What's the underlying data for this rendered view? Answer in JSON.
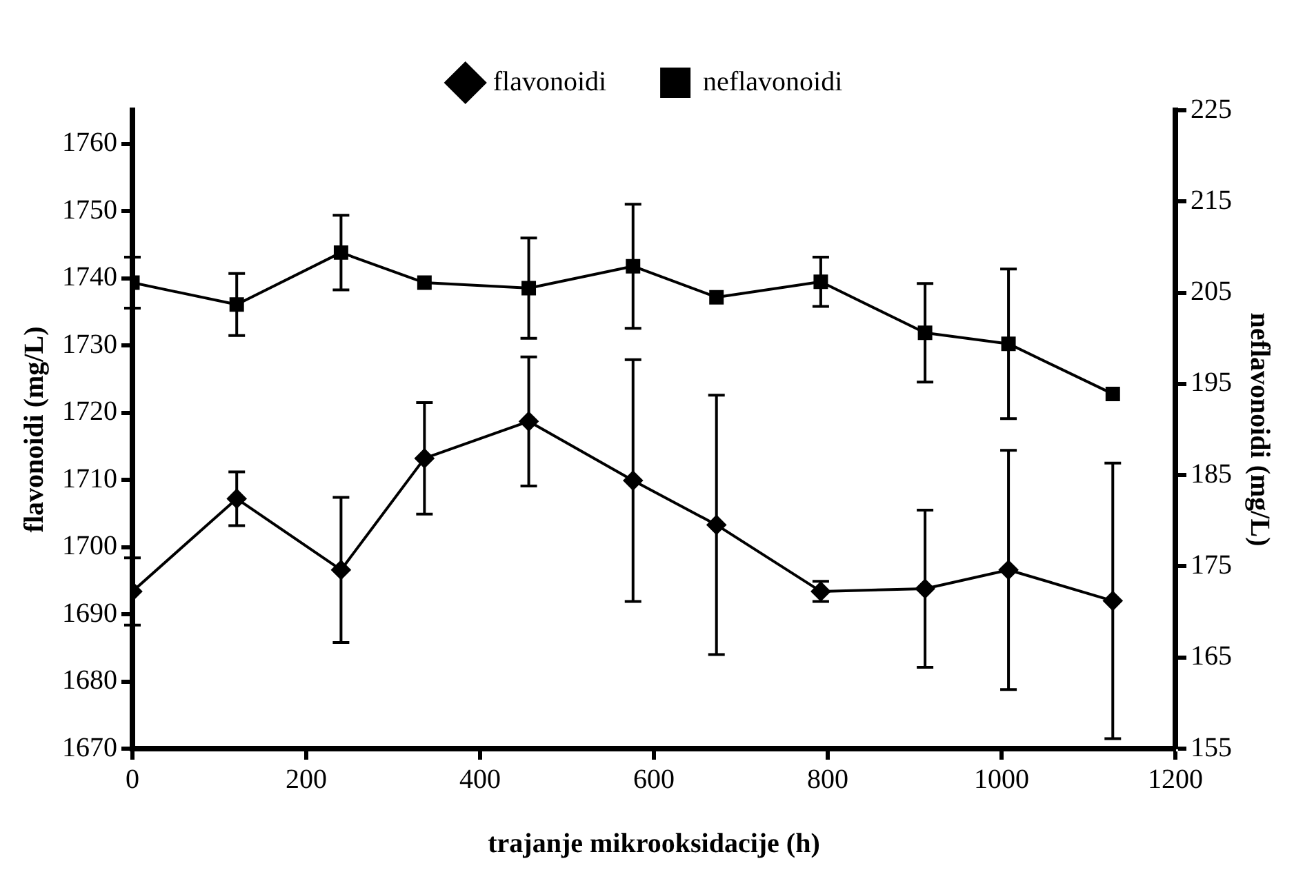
{
  "chart_data": {
    "type": "line",
    "xlabel": "trajanje mikrooksidacije (h)",
    "ylabel": "flavonoidi (mg/L)",
    "y2label": "neflavonoidi (mg/L)",
    "x": [
      0,
      120,
      240,
      336,
      456,
      576,
      672,
      792,
      912,
      1008,
      1128
    ],
    "series": [
      {
        "name": "flavonoidi",
        "color": "#000000",
        "marker": "diamond",
        "values": [
          1693.4,
          1707.2,
          1696.6,
          1713.2,
          1718.7,
          1709.9,
          1703.3,
          1693.4,
          1693.8,
          1696.6,
          1692.0
        ],
        "errors": [
          5,
          4,
          10.8,
          8.3,
          9.6,
          18,
          19.3,
          1.5,
          11.7,
          17.8,
          20.5
        ]
      },
      {
        "name": "neflavonoidi",
        "color": "#000000",
        "marker": "square",
        "axis": "y2",
        "values": [
          206.1,
          203.7,
          209.4,
          206.1,
          205.5,
          207.9,
          204.5,
          206.2,
          200.6,
          199.4,
          193.9
        ],
        "errors": [
          2.8,
          3.4,
          4.1,
          null,
          5.5,
          6.8,
          null,
          2.7,
          5.4,
          8.2,
          null
        ]
      }
    ],
    "xlim": [
      0,
      1200
    ],
    "xticks": [
      0,
      200,
      400,
      600,
      800,
      1000,
      1200
    ],
    "ylim": [
      1670,
      1765
    ],
    "yticks": [
      1670,
      1680,
      1690,
      1700,
      1710,
      1720,
      1730,
      1740,
      1750,
      1760
    ],
    "y2lim": [
      155,
      225
    ],
    "y2ticks": [
      155,
      165,
      175,
      185,
      195,
      205,
      215,
      225
    ],
    "grid": false,
    "legend": "top",
    "line_style": "solid"
  }
}
